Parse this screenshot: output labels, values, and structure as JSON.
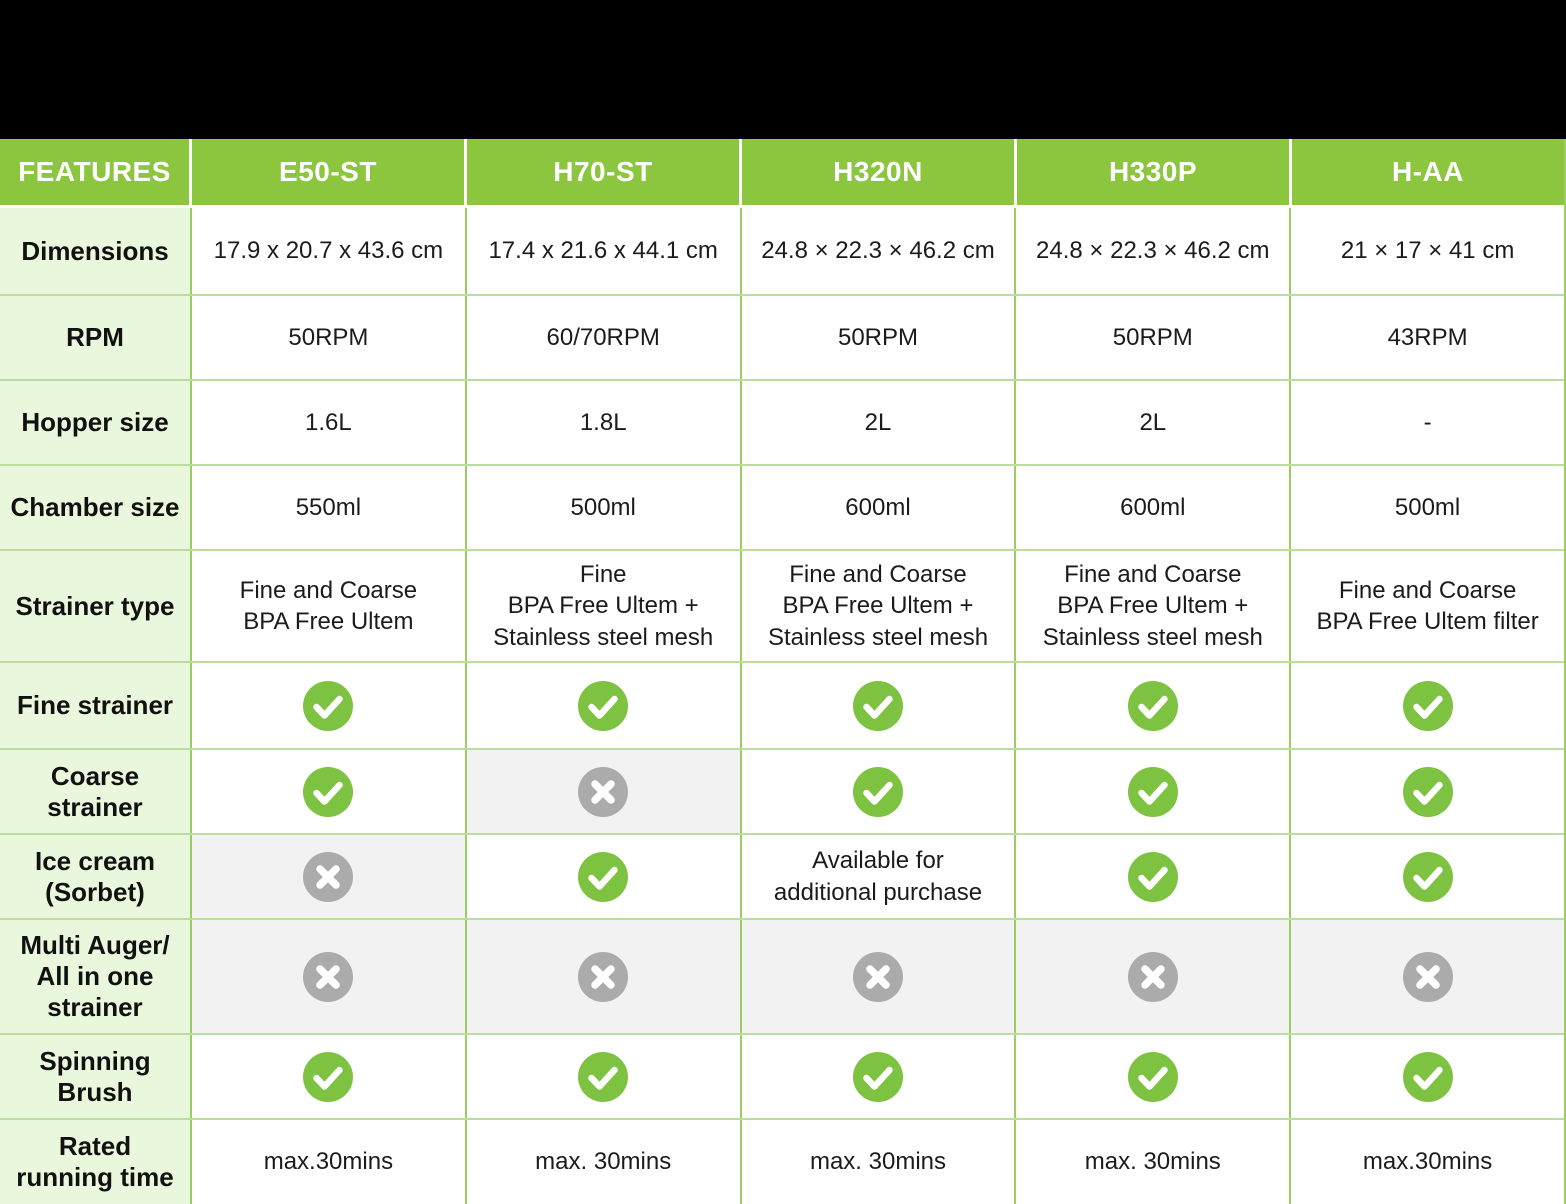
{
  "page": {
    "background": "#FFFFFF",
    "top_banner_color": "#000000"
  },
  "colors": {
    "top_banner": "#000000",
    "header_green": "#8CC63F",
    "header_text": "#FFFFFF",
    "feature_column_bg": "#E9F8DC",
    "check_green": "#7EC242",
    "cross_gray": "#ABABAB",
    "cross_cell_bg": "#F2F2F2",
    "grid_vertical": "#9CCD62",
    "grid_horizontal": "#BADE9C",
    "body_text": "#1B1B1B"
  },
  "icons": {
    "check": "check-icon",
    "cross": "cross-icon"
  },
  "header": {
    "columns": [
      "FEATURES",
      "E50-ST",
      "H70-ST",
      "H320N",
      "H330P",
      "H-AA"
    ]
  },
  "rows": [
    {
      "feature": "Dimensions",
      "cells": [
        {
          "t": "text",
          "v": "17.9 x 20.7 x 43.6 cm"
        },
        {
          "t": "text",
          "v": "17.4 x 21.6 x 44.1 cm"
        },
        {
          "t": "text",
          "v": "24.8 × 22.3 × 46.2 cm"
        },
        {
          "t": "text",
          "v": "24.8 × 22.3 × 46.2 cm"
        },
        {
          "t": "text",
          "v": "21 × 17 × 41 cm"
        }
      ]
    },
    {
      "feature": "RPM",
      "cells": [
        {
          "t": "text",
          "v": "50RPM"
        },
        {
          "t": "text",
          "v": "60/70RPM"
        },
        {
          "t": "text",
          "v": "50RPM"
        },
        {
          "t": "text",
          "v": "50RPM"
        },
        {
          "t": "text",
          "v": "43RPM"
        }
      ]
    },
    {
      "feature": "Hopper size",
      "cells": [
        {
          "t": "text",
          "v": "1.6L"
        },
        {
          "t": "text",
          "v": "1.8L"
        },
        {
          "t": "text",
          "v": "2L"
        },
        {
          "t": "text",
          "v": "2L"
        },
        {
          "t": "text",
          "v": "-"
        }
      ]
    },
    {
      "feature": "Chamber size",
      "cells": [
        {
          "t": "text",
          "v": "550ml"
        },
        {
          "t": "text",
          "v": "500ml"
        },
        {
          "t": "text",
          "v": "600ml"
        },
        {
          "t": "text",
          "v": "600ml"
        },
        {
          "t": "text",
          "v": "500ml"
        }
      ]
    },
    {
      "feature": "Strainer type",
      "cells": [
        {
          "t": "text",
          "v": "Fine and Coarse\nBPA Free Ultem"
        },
        {
          "t": "text",
          "v": "Fine\nBPA Free Ultem +\nStainless steel mesh"
        },
        {
          "t": "text",
          "v": "Fine and Coarse\nBPA Free Ultem +\nStainless steel mesh"
        },
        {
          "t": "text",
          "v": "Fine and Coarse\nBPA Free Ultem +\nStainless steel mesh"
        },
        {
          "t": "text",
          "v": "Fine and Coarse\nBPA Free Ultem filter"
        }
      ]
    },
    {
      "feature": "Fine strainer",
      "cells": [
        {
          "t": "check"
        },
        {
          "t": "check"
        },
        {
          "t": "check"
        },
        {
          "t": "check"
        },
        {
          "t": "check"
        }
      ]
    },
    {
      "feature": "Coarse\nstrainer",
      "cells": [
        {
          "t": "check"
        },
        {
          "t": "cross"
        },
        {
          "t": "check"
        },
        {
          "t": "check"
        },
        {
          "t": "check"
        }
      ]
    },
    {
      "feature": "Ice cream\n(Sorbet)",
      "cells": [
        {
          "t": "cross"
        },
        {
          "t": "check"
        },
        {
          "t": "text",
          "v": "Available for\nadditional purchase"
        },
        {
          "t": "check"
        },
        {
          "t": "check"
        }
      ]
    },
    {
      "feature": "Multi Auger/\nAll in one\nstrainer",
      "cells": [
        {
          "t": "cross"
        },
        {
          "t": "cross"
        },
        {
          "t": "cross"
        },
        {
          "t": "cross"
        },
        {
          "t": "cross"
        }
      ]
    },
    {
      "feature": "Spinning\nBrush",
      "cells": [
        {
          "t": "check"
        },
        {
          "t": "check"
        },
        {
          "t": "check"
        },
        {
          "t": "check"
        },
        {
          "t": "check"
        }
      ]
    },
    {
      "feature": "Rated\nrunning time",
      "cells": [
        {
          "t": "text",
          "v": "max.30mins"
        },
        {
          "t": "text",
          "v": "max. 30mins"
        },
        {
          "t": "text",
          "v": "max. 30mins"
        },
        {
          "t": "text",
          "v": "max. 30mins"
        },
        {
          "t": "text",
          "v": "max.30mins"
        }
      ]
    }
  ]
}
